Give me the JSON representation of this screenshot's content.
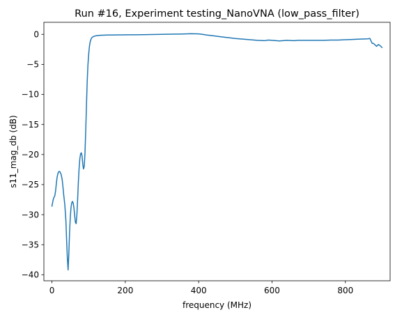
{
  "chart_data": {
    "type": "line",
    "title": "Run #16, Experiment testing_NanoVNA (low_pass_filter)",
    "xlabel": "frequency (MHz)",
    "ylabel": "s11_mag_db (dB)",
    "xlim": [
      -22,
      922
    ],
    "ylim": [
      -41,
      2
    ],
    "xticks": [
      0,
      200,
      400,
      600,
      800
    ],
    "yticks": [
      0,
      -5,
      -10,
      -15,
      -20,
      -25,
      -30,
      -35,
      -40
    ],
    "grid": false,
    "line_color": "#1f77b4",
    "series": [
      {
        "x": [
          0,
          3,
          5,
          8,
          10,
          12,
          14,
          16,
          18,
          20,
          22,
          25,
          28,
          30,
          32,
          35,
          38,
          40,
          42,
          44,
          46,
          48,
          50,
          52,
          54,
          56,
          58,
          60,
          62,
          64,
          66,
          68,
          70,
          72,
          74,
          76,
          78,
          80,
          82,
          84,
          86,
          88,
          90,
          92,
          94,
          96,
          98,
          100,
          102,
          104,
          106,
          108,
          110,
          112,
          114,
          116,
          118,
          120,
          123,
          126,
          130,
          135,
          140,
          150,
          160,
          180,
          200,
          250,
          300,
          350,
          380,
          400,
          410,
          420,
          440,
          460,
          480,
          500,
          520,
          540,
          560,
          580,
          590,
          600,
          620,
          640,
          660,
          670,
          680,
          700,
          720,
          740,
          760,
          780,
          800,
          820,
          840,
          860,
          867,
          870,
          873,
          876,
          880,
          885,
          890,
          895,
          900
        ],
        "values": [
          -28.6,
          -27.6,
          -27.2,
          -26.8,
          -26.0,
          -24.8,
          -23.8,
          -23.2,
          -22.9,
          -22.8,
          -22.9,
          -23.3,
          -24.2,
          -25.4,
          -26.7,
          -28.3,
          -31.0,
          -34.3,
          -37.2,
          -39.2,
          -36.5,
          -33.0,
          -30.4,
          -28.8,
          -28.0,
          -27.8,
          -28.1,
          -28.9,
          -30.2,
          -31.3,
          -31.5,
          -30.0,
          -27.4,
          -24.6,
          -22.3,
          -20.7,
          -19.9,
          -19.7,
          -20.2,
          -21.6,
          -22.4,
          -22.0,
          -19.8,
          -16.2,
          -12.0,
          -8.0,
          -5.2,
          -3.4,
          -2.1,
          -1.3,
          -0.9,
          -0.6,
          -0.5,
          -0.4,
          -0.35,
          -0.3,
          -0.28,
          -0.25,
          -0.22,
          -0.2,
          -0.18,
          -0.15,
          -0.14,
          -0.12,
          -0.11,
          -0.1,
          -0.09,
          -0.05,
          0.0,
          0.05,
          0.1,
          0.07,
          0.0,
          -0.1,
          -0.25,
          -0.4,
          -0.55,
          -0.7,
          -0.8,
          -0.9,
          -1.0,
          -1.05,
          -0.95,
          -1.0,
          -1.1,
          -1.0,
          -1.05,
          -1.0,
          -1.0,
          -1.0,
          -1.0,
          -1.0,
          -0.95,
          -0.95,
          -0.9,
          -0.85,
          -0.8,
          -0.75,
          -0.7,
          -1.1,
          -1.5,
          -1.5,
          -1.7,
          -2.0,
          -1.7,
          -1.9,
          -2.2
        ]
      }
    ]
  }
}
